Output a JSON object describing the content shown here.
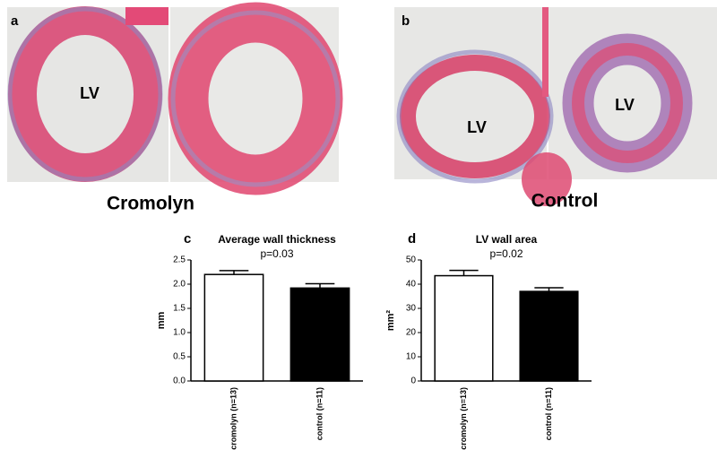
{
  "figure": {
    "panel_a": {
      "label": "a",
      "lv": "LV",
      "caption": "Cromolyn"
    },
    "panel_b": {
      "label": "b",
      "lv_left": "LV",
      "lv_right": "LV",
      "caption": "Control"
    }
  },
  "chart_data": [
    {
      "type": "bar",
      "panel_label": "c",
      "title": "Average wall thickness",
      "subtitle": "p=0.03",
      "y_label": "mm",
      "categories": [
        "cromolyn (n=13)",
        "control (n=11)"
      ],
      "values": [
        2.2,
        1.92
      ],
      "errors": [
        0.08,
        0.09
      ],
      "colors": [
        "#ffffff",
        "#000000"
      ],
      "edge_color": "#000000",
      "ylim": [
        0,
        2.5
      ],
      "yticks": [
        {
          "value": 0,
          "label": "0.0"
        },
        0.5,
        {
          "value": 1,
          "label": "1.0"
        },
        1.5,
        {
          "value": 2,
          "label": "2.0"
        },
        2.5
      ]
    },
    {
      "type": "bar",
      "panel_label": "d",
      "title": "LV wall area",
      "subtitle": "p=0.02",
      "y_label": "mm²",
      "categories": [
        "cromolyn (n=13)",
        "control (n=11)"
      ],
      "values": [
        43.5,
        37
      ],
      "errors": [
        2.2,
        1.5
      ],
      "colors": [
        "#ffffff",
        "#000000"
      ],
      "edge_color": "#000000",
      "ylim": [
        0,
        50
      ],
      "yticks": [
        0,
        10,
        20,
        30,
        40,
        50
      ]
    }
  ]
}
